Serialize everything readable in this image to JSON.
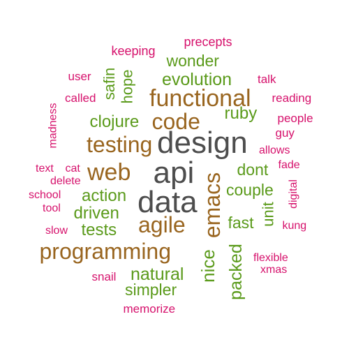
{
  "colors": {
    "dark": "#4d4d4d",
    "brown": "#99651f",
    "green": "#5a9a1a",
    "pink": "#d6116c"
  },
  "words": [
    {
      "id": "design",
      "text": "design",
      "color": "dark"
    },
    {
      "id": "api",
      "text": "api",
      "color": "dark"
    },
    {
      "id": "data",
      "text": "data",
      "color": "dark"
    },
    {
      "id": "functional",
      "text": "functional",
      "color": "brown"
    },
    {
      "id": "code",
      "text": "code",
      "color": "brown"
    },
    {
      "id": "testing",
      "text": "testing",
      "color": "brown"
    },
    {
      "id": "web",
      "text": "web",
      "color": "brown"
    },
    {
      "id": "agile",
      "text": "agile",
      "color": "brown"
    },
    {
      "id": "emacs",
      "text": "emacs",
      "color": "brown"
    },
    {
      "id": "programming",
      "text": "programming",
      "color": "brown"
    },
    {
      "id": "wonder",
      "text": "wonder",
      "color": "green"
    },
    {
      "id": "evolution",
      "text": "evolution",
      "color": "green"
    },
    {
      "id": "safin",
      "text": "safin",
      "color": "green"
    },
    {
      "id": "hope",
      "text": "hope",
      "color": "green"
    },
    {
      "id": "clojure",
      "text": "clojure",
      "color": "green"
    },
    {
      "id": "ruby",
      "text": "ruby",
      "color": "green"
    },
    {
      "id": "dont",
      "text": "dont",
      "color": "green"
    },
    {
      "id": "couple",
      "text": "couple",
      "color": "green"
    },
    {
      "id": "action",
      "text": "action",
      "color": "green"
    },
    {
      "id": "driven",
      "text": "driven",
      "color": "green"
    },
    {
      "id": "tests",
      "text": "tests",
      "color": "green"
    },
    {
      "id": "fast",
      "text": "fast",
      "color": "green"
    },
    {
      "id": "unit",
      "text": "unit",
      "color": "green"
    },
    {
      "id": "nice",
      "text": "nice",
      "color": "green"
    },
    {
      "id": "packed",
      "text": "packed",
      "color": "green"
    },
    {
      "id": "natural",
      "text": "natural",
      "color": "green"
    },
    {
      "id": "simpler",
      "text": "simpler",
      "color": "green"
    },
    {
      "id": "precepts",
      "text": "precepts",
      "color": "pink"
    },
    {
      "id": "keeping",
      "text": "keeping",
      "color": "pink"
    },
    {
      "id": "user",
      "text": "user",
      "color": "pink"
    },
    {
      "id": "talk",
      "text": "talk",
      "color": "pink"
    },
    {
      "id": "called",
      "text": "called",
      "color": "pink"
    },
    {
      "id": "reading",
      "text": "reading",
      "color": "pink"
    },
    {
      "id": "madness",
      "text": "madness",
      "color": "pink"
    },
    {
      "id": "people",
      "text": "people",
      "color": "pink"
    },
    {
      "id": "guy",
      "text": "guy",
      "color": "pink"
    },
    {
      "id": "allows",
      "text": "allows",
      "color": "pink"
    },
    {
      "id": "text",
      "text": "text",
      "color": "pink"
    },
    {
      "id": "cat",
      "text": "cat",
      "color": "pink"
    },
    {
      "id": "fade",
      "text": "fade",
      "color": "pink"
    },
    {
      "id": "delete",
      "text": "delete",
      "color": "pink"
    },
    {
      "id": "digital",
      "text": "digital",
      "color": "pink"
    },
    {
      "id": "school",
      "text": "school",
      "color": "pink"
    },
    {
      "id": "tool",
      "text": "tool",
      "color": "pink"
    },
    {
      "id": "slow",
      "text": "slow",
      "color": "pink"
    },
    {
      "id": "kung",
      "text": "kung",
      "color": "pink"
    },
    {
      "id": "flexible",
      "text": "flexible",
      "color": "pink"
    },
    {
      "id": "xmas",
      "text": "xmas",
      "color": "pink"
    },
    {
      "id": "snail",
      "text": "snail",
      "color": "pink"
    },
    {
      "id": "memorize",
      "text": "memorize",
      "color": "pink"
    }
  ]
}
